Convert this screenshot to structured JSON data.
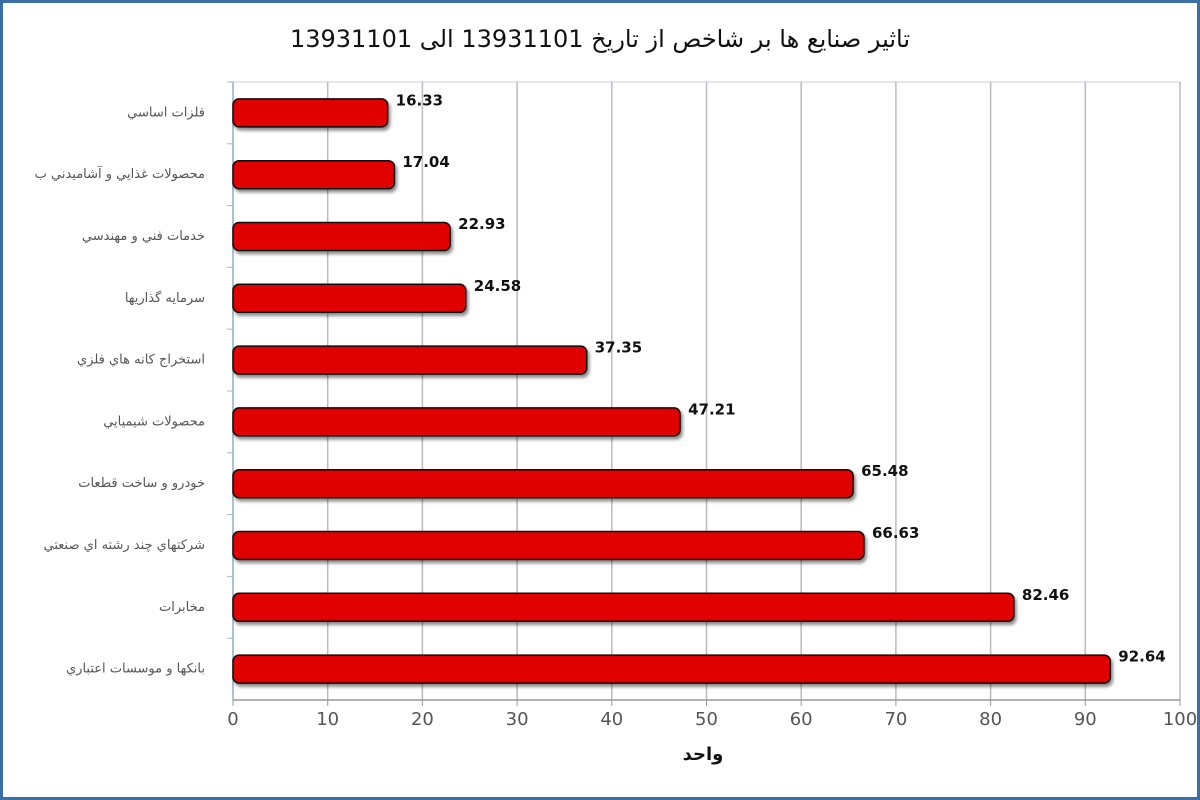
{
  "chart_data": {
    "type": "barh",
    "title": "تاثير صنايع ها بر شاخص از تاريخ 13931101 الى 13931101",
    "x_label": "واحد",
    "categories": [
      "فلزات اساسي",
      "محصولات غذايي و آشاميدني ب",
      "خدمات فني و مهندسي",
      "سرمايه گذاريها",
      "استخراج كانه هاي فلزي",
      "محصولات شيميايي",
      "خودرو و ساخت قطعات",
      "شركتهاي چند رشته اي صنعتي",
      "مخابرات",
      "بانكها و موسسات اعتباري"
    ],
    "values": [
      16.33,
      17.04,
      22.93,
      24.58,
      37.35,
      47.21,
      65.48,
      66.63,
      82.46,
      92.64
    ],
    "color": "#e00000",
    "xlim": [
      0,
      100
    ],
    "xticks": [
      0,
      10,
      20,
      30,
      40,
      50,
      60,
      70,
      80,
      90,
      100
    ],
    "grid": true
  }
}
